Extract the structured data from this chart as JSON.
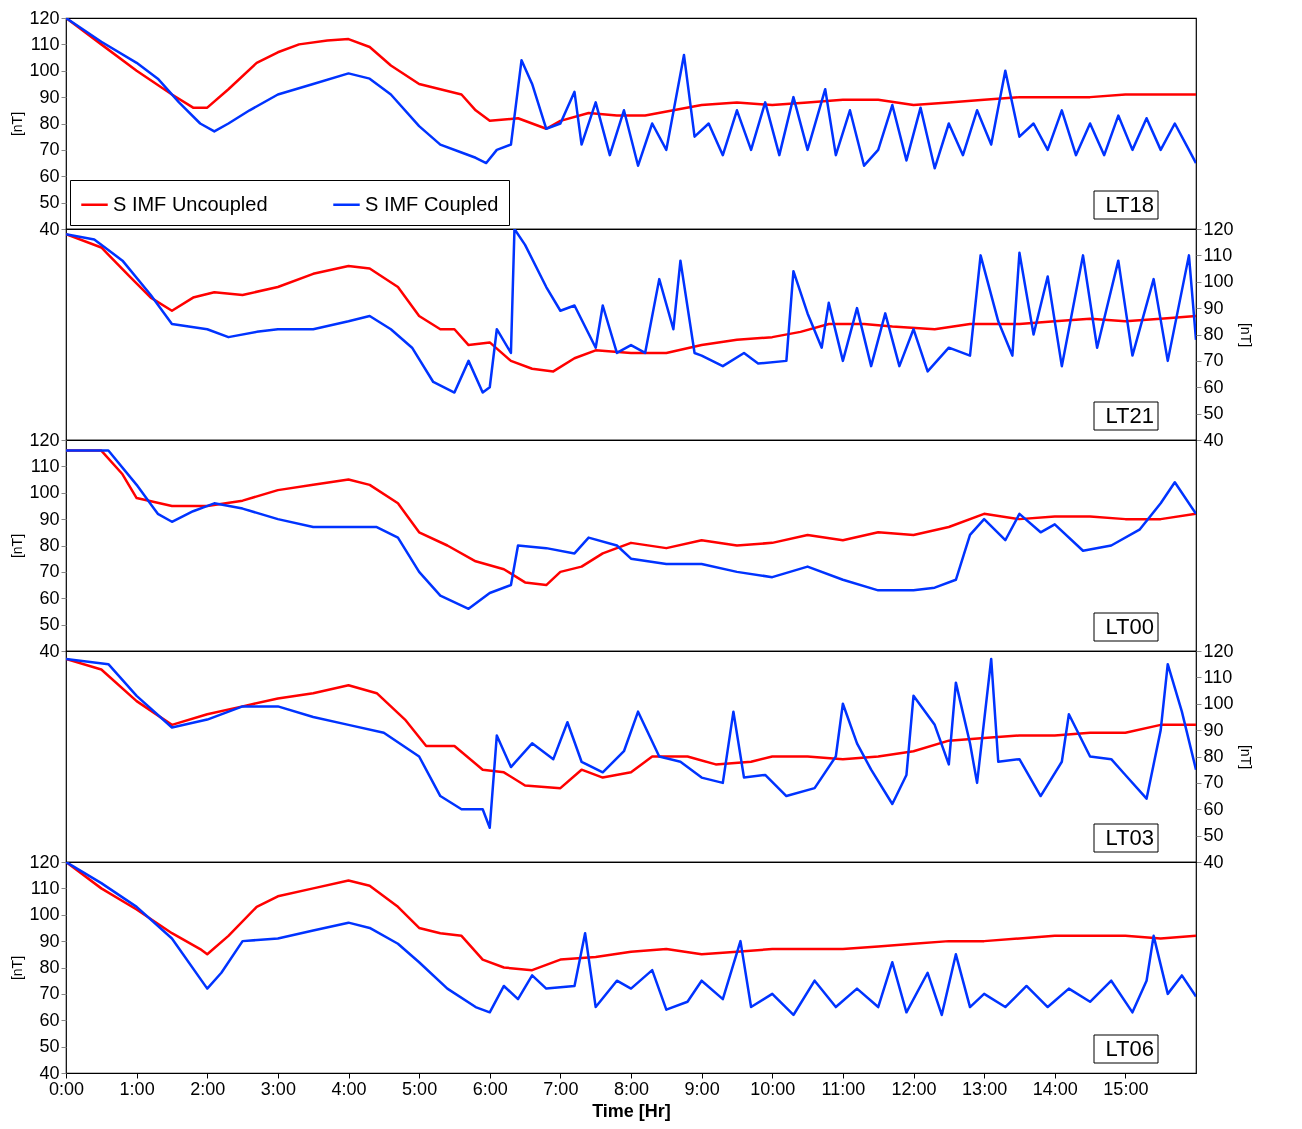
{
  "chart_data": [
    {
      "type": "line",
      "ylabel": "[nT]",
      "ylim": [
        40,
        120
      ],
      "yticks": [
        40,
        50,
        60,
        70,
        80,
        90,
        100,
        110,
        120
      ],
      "xlim": [
        0,
        16
      ],
      "tick_labels": "y",
      "legend": "bottom left",
      "annotations": [
        "LT18"
      ],
      "series": [
        {
          "name": "S IMF Uncoupled",
          "color": "#ff0000",
          "x": [
            0,
            0.5,
            1,
            1.5,
            1.8,
            2.0,
            2.3,
            2.7,
            3.0,
            3.3,
            3.7,
            4.0,
            4.3,
            4.6,
            5.0,
            5.3,
            5.6,
            5.8,
            6.0,
            6.4,
            6.8,
            7.0,
            7.4,
            7.8,
            8.2,
            8.6,
            9.0,
            9.5,
            10.0,
            10.5,
            11.0,
            11.5,
            12.0,
            12.5,
            13.0,
            13.5,
            14.0,
            14.5,
            15.0,
            15.5,
            16.0
          ],
          "values": [
            120,
            110,
            100,
            91,
            86,
            86,
            93,
            103,
            107,
            110,
            111.5,
            112,
            109,
            102,
            95,
            93,
            91,
            85,
            81,
            82,
            78,
            81,
            84,
            83,
            83,
            85,
            87,
            88,
            87,
            88,
            89,
            89,
            87,
            88,
            89,
            90,
            90,
            90,
            91,
            91,
            91
          ]
        },
        {
          "name": "S IMF Coupled",
          "color": "#0033ff",
          "x": [
            0,
            0.5,
            1,
            1.3,
            1.6,
            1.9,
            2.1,
            2.3,
            2.6,
            3.0,
            3.5,
            4.0,
            4.3,
            4.6,
            5.0,
            5.3,
            5.6,
            5.8,
            5.95,
            6.1,
            6.3,
            6.45,
            6.6,
            6.8,
            7.0,
            7.2,
            7.3,
            7.5,
            7.7,
            7.9,
            8.1,
            8.3,
            8.5,
            8.75,
            8.9,
            9.1,
            9.3,
            9.5,
            9.7,
            9.9,
            10.1,
            10.3,
            10.5,
            10.75,
            10.9,
            11.1,
            11.3,
            11.5,
            11.7,
            11.9,
            12.1,
            12.3,
            12.5,
            12.7,
            12.9,
            13.1,
            13.3,
            13.5,
            13.7,
            13.9,
            14.1,
            14.3,
            14.5,
            14.7,
            14.9,
            15.1,
            15.3,
            15.5,
            15.7,
            15.9,
            16.0
          ],
          "values": [
            120,
            111,
            103,
            97,
            88,
            80,
            77,
            80,
            85,
            91,
            95,
            99,
            97,
            91,
            79,
            72,
            69,
            67,
            65,
            70,
            72,
            104,
            95,
            78,
            80,
            92,
            72,
            88,
            68,
            85,
            64,
            80,
            70,
            106,
            75,
            80,
            68,
            85,
            70,
            88,
            68,
            90,
            70,
            93,
            68,
            85,
            64,
            70,
            87,
            66,
            86,
            63,
            80,
            68,
            85,
            72,
            100,
            75,
            80,
            70,
            85,
            68,
            80,
            68,
            83,
            70,
            82,
            70,
            80,
            70,
            65
          ]
        }
      ]
    },
    {
      "type": "line",
      "y2label": "[nT]",
      "y2lim": [
        40,
        120
      ],
      "y2ticks": [
        40,
        50,
        60,
        70,
        80,
        90,
        100,
        110,
        120
      ],
      "xlim": [
        0,
        16
      ],
      "tick_labels": "y2",
      "annotations": [
        "LT21"
      ],
      "series": [
        {
          "color": "#ff0000",
          "axis": "y2",
          "x": [
            0,
            0.5,
            0.9,
            1.2,
            1.5,
            1.8,
            2.1,
            2.5,
            3.0,
            3.5,
            4.0,
            4.3,
            4.7,
            5.0,
            5.3,
            5.5,
            5.7,
            6.0,
            6.3,
            6.6,
            6.9,
            7.2,
            7.5,
            8.0,
            8.5,
            9.0,
            9.5,
            10.0,
            10.4,
            10.8,
            11.3,
            11.7,
            12.3,
            12.8,
            13.5,
            14.0,
            14.5,
            15.0,
            15.5,
            16.0
          ],
          "values": [
            118,
            113,
            102,
            94,
            89,
            94,
            96,
            95,
            98,
            103,
            106,
            105,
            98,
            87,
            82,
            82,
            76,
            77,
            70,
            67,
            66,
            71,
            74,
            73,
            73,
            76,
            78,
            79,
            81,
            84,
            84,
            83,
            82,
            84,
            84,
            85,
            86,
            85,
            86,
            87
          ]
        },
        {
          "color": "#0033ff",
          "axis": "y2",
          "x": [
            0,
            0.4,
            0.8,
            1.2,
            1.5,
            2.0,
            2.3,
            2.7,
            3.0,
            3.5,
            4.0,
            4.3,
            4.6,
            4.9,
            5.2,
            5.5,
            5.7,
            5.9,
            6.0,
            6.1,
            6.3,
            6.35,
            6.5,
            6.8,
            7.0,
            7.2,
            7.5,
            7.6,
            7.8,
            8.0,
            8.2,
            8.4,
            8.6,
            8.7,
            8.9,
            9.0,
            9.3,
            9.6,
            9.8,
            10.2,
            10.3,
            10.5,
            10.7,
            10.8,
            11.0,
            11.2,
            11.4,
            11.6,
            11.8,
            12.0,
            12.2,
            12.5,
            12.8,
            12.95,
            13.2,
            13.4,
            13.5,
            13.7,
            13.9,
            14.1,
            14.4,
            14.6,
            14.9,
            15.1,
            15.4,
            15.6,
            15.9,
            16.0
          ],
          "values": [
            118,
            116,
            108,
            95,
            84,
            82,
            79,
            81,
            82,
            82,
            85,
            87,
            82,
            75,
            62,
            58,
            70,
            58,
            60,
            82,
            73,
            120,
            114,
            98,
            89,
            91,
            75,
            91,
            73,
            76,
            73,
            101,
            82,
            108,
            73,
            72,
            68,
            73,
            69,
            70,
            104,
            88,
            75,
            92,
            70,
            90,
            68,
            88,
            68,
            82,
            66,
            75,
            72,
            110,
            85,
            72,
            111,
            80,
            102,
            68,
            110,
            75,
            108,
            72,
            101,
            70,
            110,
            78
          ]
        }
      ]
    },
    {
      "type": "line",
      "ylabel": "[nT]",
      "ylim": [
        40,
        120
      ],
      "yticks": [
        40,
        50,
        60,
        70,
        80,
        90,
        100,
        110,
        120
      ],
      "xlim": [
        0,
        16
      ],
      "tick_labels": "y",
      "annotations": [
        "LT00"
      ],
      "series": [
        {
          "color": "#ff0000",
          "x": [
            0,
            0.5,
            0.8,
            1.0,
            1.5,
            2.0,
            2.5,
            3.0,
            3.5,
            4.0,
            4.3,
            4.7,
            5.0,
            5.4,
            5.8,
            6.2,
            6.5,
            6.8,
            7.0,
            7.3,
            7.6,
            8.0,
            8.5,
            9.0,
            9.5,
            10.0,
            10.5,
            11.0,
            11.5,
            12.0,
            12.5,
            13.0,
            13.5,
            14.0,
            14.5,
            15.0,
            15.5,
            16.0
          ],
          "values": [
            116,
            116,
            107,
            98,
            95,
            95,
            97,
            101,
            103,
            105,
            103,
            96,
            85,
            80,
            74,
            71,
            66,
            65,
            70,
            72,
            77,
            81,
            79,
            82,
            80,
            81,
            84,
            82,
            85,
            84,
            87,
            92,
            90,
            91,
            91,
            90,
            90,
            92
          ]
        },
        {
          "color": "#0033ff",
          "x": [
            0,
            0.6,
            1.0,
            1.3,
            1.5,
            1.8,
            2.1,
            2.5,
            3.0,
            3.5,
            4.0,
            4.4,
            4.7,
            5.0,
            5.3,
            5.7,
            6.0,
            6.3,
            6.4,
            6.8,
            7.2,
            7.4,
            7.8,
            8.0,
            8.5,
            9.0,
            9.5,
            10.0,
            10.5,
            11.0,
            11.5,
            12.0,
            12.3,
            12.6,
            12.8,
            13.0,
            13.3,
            13.5,
            13.8,
            14.0,
            14.4,
            14.8,
            15.2,
            15.5,
            15.7,
            16.0
          ],
          "values": [
            116,
            116,
            103,
            92,
            89,
            93,
            96,
            94,
            90,
            87,
            87,
            87,
            83,
            70,
            61,
            56,
            62,
            65,
            80,
            79,
            77,
            83,
            80,
            75,
            73,
            73,
            70,
            68,
            72,
            67,
            63,
            63,
            64,
            67,
            84,
            90,
            82,
            92,
            85,
            88,
            78,
            80,
            86,
            96,
            104,
            92
          ]
        }
      ]
    },
    {
      "type": "line",
      "y2label": "[nT]",
      "y2lim": [
        40,
        120
      ],
      "y2ticks": [
        40,
        50,
        60,
        70,
        80,
        90,
        100,
        110,
        120
      ],
      "xlim": [
        0,
        16
      ],
      "tick_labels": "y2",
      "annotations": [
        "LT03"
      ],
      "series": [
        {
          "color": "#ff0000",
          "axis": "y2",
          "x": [
            0,
            0.5,
            1.0,
            1.5,
            2.0,
            2.5,
            3.0,
            3.5,
            4.0,
            4.4,
            4.8,
            5.1,
            5.5,
            5.9,
            6.2,
            6.5,
            7.0,
            7.3,
            7.6,
            8.0,
            8.3,
            8.8,
            9.2,
            9.7,
            10.0,
            10.5,
            11.0,
            11.5,
            12.0,
            12.5,
            13.0,
            13.5,
            14.0,
            14.5,
            15.0,
            15.5,
            16.0
          ],
          "values": [
            117,
            113,
            101,
            92,
            96,
            99,
            102,
            104,
            107,
            104,
            94,
            84,
            84,
            75,
            74,
            69,
            68,
            75,
            72,
            74,
            80,
            80,
            77,
            78,
            80,
            80,
            79,
            80,
            82,
            86,
            87,
            88,
            88,
            89,
            89,
            92,
            92
          ]
        },
        {
          "color": "#0033ff",
          "axis": "y2",
          "x": [
            0,
            0.6,
            1.0,
            1.5,
            2.0,
            2.5,
            3.0,
            3.5,
            4.0,
            4.5,
            5.0,
            5.3,
            5.6,
            5.9,
            6.0,
            6.1,
            6.3,
            6.6,
            6.9,
            7.1,
            7.3,
            7.6,
            7.9,
            8.1,
            8.4,
            8.7,
            9.0,
            9.3,
            9.45,
            9.6,
            9.9,
            10.2,
            10.6,
            10.9,
            11.0,
            11.2,
            11.4,
            11.7,
            11.9,
            12.0,
            12.3,
            12.5,
            12.6,
            12.8,
            12.9,
            13.1,
            13.2,
            13.5,
            13.8,
            14.1,
            14.2,
            14.5,
            14.8,
            15.0,
            15.3,
            15.5,
            15.6,
            15.8,
            16.0
          ],
          "values": [
            117,
            115,
            103,
            91,
            94,
            99,
            99,
            95,
            92,
            89,
            80,
            65,
            60,
            60,
            53,
            88,
            76,
            85,
            79,
            93,
            78,
            74,
            82,
            97,
            80,
            78,
            72,
            70,
            97,
            72,
            73,
            65,
            68,
            80,
            100,
            85,
            75,
            62,
            73,
            103,
            92,
            77,
            108,
            85,
            70,
            117,
            78,
            79,
            65,
            78,
            96,
            80,
            79,
            73,
            64,
            90,
            115,
            97,
            75
          ]
        }
      ]
    },
    {
      "type": "line",
      "ylabel": "[nT]",
      "xlabel": "Time [Hr]",
      "ylim": [
        40,
        120
      ],
      "yticks": [
        40,
        50,
        60,
        70,
        80,
        90,
        100,
        110,
        120
      ],
      "xlim": [
        0,
        16
      ],
      "xticks": [
        {
          "value": 0,
          "label": "0:00"
        },
        {
          "value": 1,
          "label": "1:00"
        },
        {
          "value": 2,
          "label": "2:00"
        },
        {
          "value": 3,
          "label": "3:00"
        },
        {
          "value": 4,
          "label": "4:00"
        },
        {
          "value": 5,
          "label": "5:00"
        },
        {
          "value": 6,
          "label": "6:00"
        },
        {
          "value": 7,
          "label": "7:00"
        },
        {
          "value": 8,
          "label": "8:00"
        },
        {
          "value": 9,
          "label": "9:00"
        },
        {
          "value": 10,
          "label": "10:00"
        },
        {
          "value": 11,
          "label": "11:00"
        },
        {
          "value": 12,
          "label": "12:00"
        },
        {
          "value": 13,
          "label": "13:00"
        },
        {
          "value": 14,
          "label": "14:00"
        },
        {
          "value": 15,
          "label": "15:00"
        }
      ],
      "annotations": [
        "LT06"
      ],
      "series": [
        {
          "color": "#ff0000",
          "x": [
            0,
            0.5,
            1.0,
            1.5,
            1.9,
            2.0,
            2.3,
            2.7,
            3.0,
            3.5,
            4.0,
            4.3,
            4.7,
            5.0,
            5.3,
            5.6,
            5.9,
            6.2,
            6.6,
            7.0,
            7.5,
            8.0,
            8.5,
            9.0,
            9.5,
            10.0,
            10.5,
            11.0,
            11.5,
            12.0,
            12.5,
            13.0,
            13.5,
            14.0,
            14.5,
            15.0,
            15.5,
            16.0
          ],
          "values": [
            120,
            110,
            102,
            93,
            87,
            85,
            92,
            103,
            107,
            110,
            113,
            111,
            103,
            95,
            93,
            92,
            83,
            80,
            79,
            83,
            84,
            86,
            87,
            85,
            86,
            87,
            87,
            87,
            88,
            89,
            90,
            90,
            91,
            92,
            92,
            92,
            91,
            92
          ]
        },
        {
          "color": "#0033ff",
          "x": [
            0,
            0.5,
            1.0,
            1.5,
            2.0,
            2.2,
            2.5,
            3.0,
            3.5,
            4.0,
            4.3,
            4.7,
            5.0,
            5.4,
            5.8,
            6.0,
            6.2,
            6.4,
            6.6,
            6.8,
            7.2,
            7.35,
            7.5,
            7.8,
            8.0,
            8.3,
            8.5,
            8.8,
            9.0,
            9.3,
            9.55,
            9.7,
            10.0,
            10.3,
            10.6,
            10.9,
            11.2,
            11.5,
            11.7,
            11.9,
            12.2,
            12.4,
            12.6,
            12.8,
            13.0,
            13.3,
            13.6,
            13.9,
            14.2,
            14.5,
            14.8,
            15.1,
            15.3,
            15.4,
            15.6,
            15.8,
            16.0
          ],
          "values": [
            120,
            112,
            103,
            91,
            72,
            78,
            90,
            91,
            94,
            97,
            95,
            89,
            82,
            72,
            65,
            63,
            73,
            68,
            77,
            72,
            73,
            93,
            65,
            75,
            72,
            79,
            64,
            67,
            75,
            68,
            90,
            65,
            70,
            62,
            75,
            65,
            72,
            65,
            82,
            63,
            78,
            62,
            85,
            65,
            70,
            65,
            73,
            65,
            72,
            67,
            75,
            63,
            75,
            92,
            70,
            77,
            69
          ]
        }
      ]
    }
  ]
}
